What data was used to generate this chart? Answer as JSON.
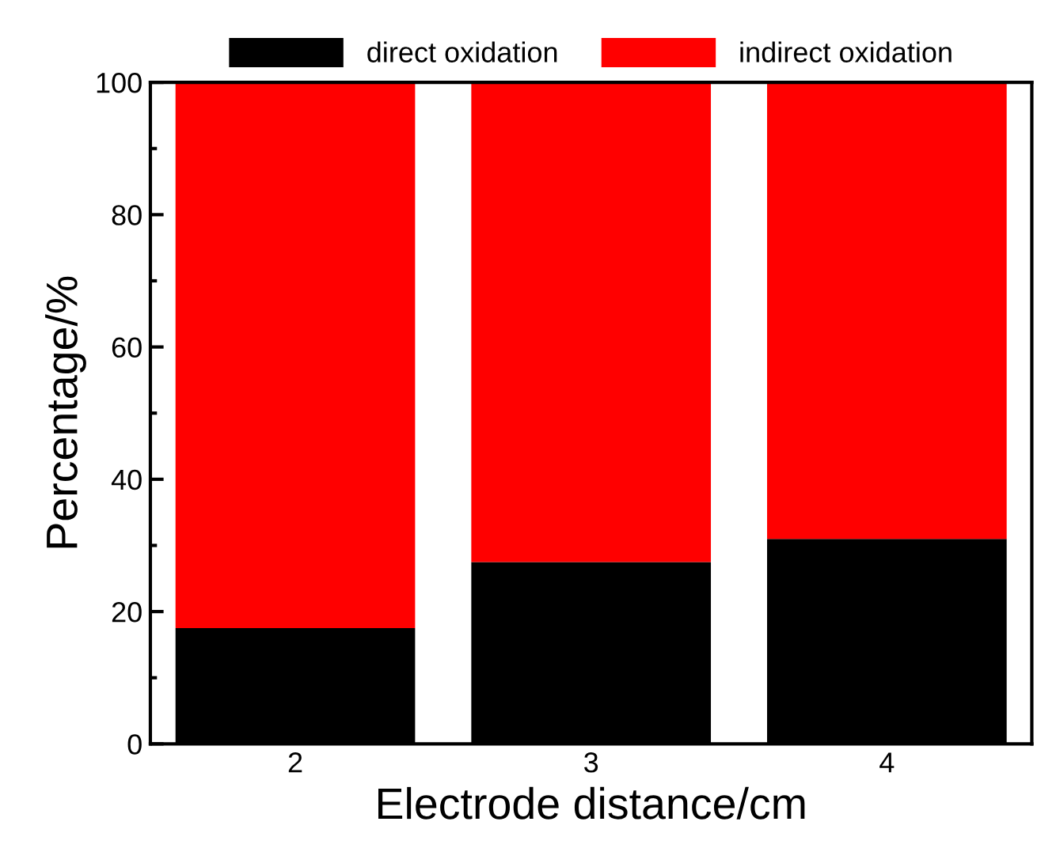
{
  "chart_data": {
    "type": "bar",
    "stacked": true,
    "xlabel": "Electrode distance/cm",
    "ylabel": "Percentage/%",
    "categories": [
      "2",
      "3",
      "4"
    ],
    "series": [
      {
        "name": "direct oxidation",
        "color": "#000000",
        "values": [
          17.5,
          27.5,
          31
        ]
      },
      {
        "name": "indirect oxidation",
        "color": "#ff0000",
        "values": [
          82.5,
          72.5,
          69
        ]
      }
    ],
    "ylim": [
      0,
      100
    ],
    "yticks": [
      0,
      20,
      40,
      60,
      80,
      100
    ],
    "grid": false,
    "legend": "top"
  }
}
